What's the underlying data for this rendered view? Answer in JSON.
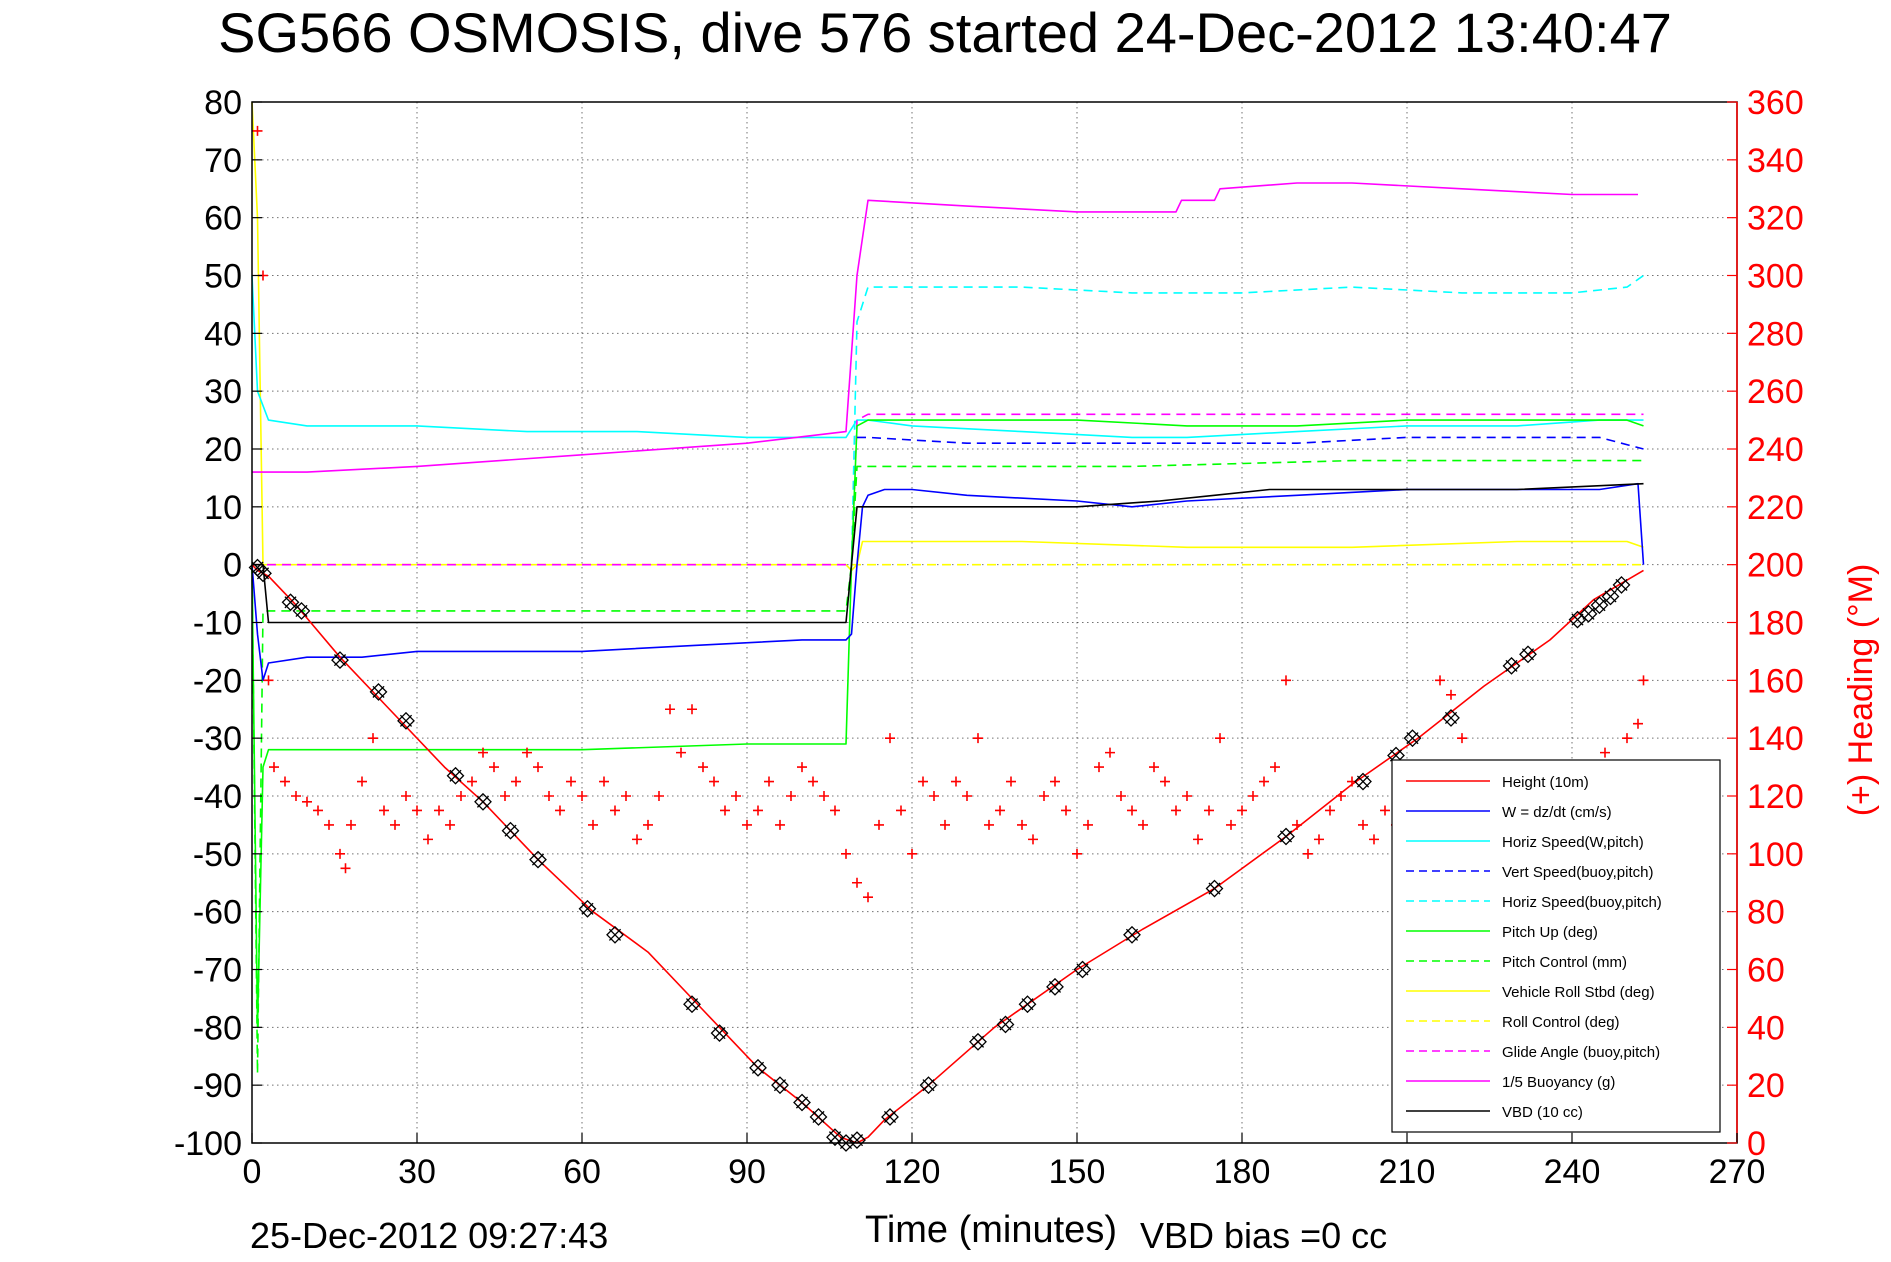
{
  "chart_data": {
    "type": "line",
    "title": "SG566 OSMOSIS, dive 576 started 24-Dec-2012 13:40:47",
    "xlabel": "Time (minutes)",
    "ylabel": "",
    "ylabel_right": "(+) Heading (°M)",
    "footer_left": "25-Dec-2012 09:27:43",
    "footer_right": "VBD bias =0 cc",
    "xlim": [
      0,
      270
    ],
    "ylim": [
      -100,
      80
    ],
    "ylim_right": [
      0,
      360
    ],
    "x_ticks": [
      0,
      30,
      60,
      90,
      120,
      150,
      180,
      210,
      240,
      270
    ],
    "y_ticks": [
      80,
      70,
      60,
      50,
      40,
      30,
      20,
      10,
      0,
      -10,
      -20,
      -30,
      -40,
      -50,
      -60,
      -70,
      -80,
      -90,
      -100
    ],
    "y_ticks_right": [
      360,
      340,
      320,
      300,
      280,
      260,
      240,
      220,
      200,
      180,
      160,
      140,
      120,
      100,
      80,
      60,
      40,
      20,
      0
    ],
    "grid": true,
    "legend_position": "bottom-right",
    "colors": {
      "red": "#ff0000",
      "blue": "#0000ff",
      "cyan": "#00ffff",
      "green": "#00ff00",
      "yellow": "#ffff00",
      "magenta": "#ff00ff",
      "black": "#000000"
    },
    "series": [
      {
        "name": "Height (10m)",
        "color": "#ff0000",
        "style": "solid",
        "x": [
          0,
          1,
          3,
          8,
          16,
          24,
          35,
          42,
          52,
          62,
          72,
          82,
          92,
          100,
          107,
          110,
          112,
          115,
          123,
          135,
          150,
          162,
          175,
          188,
          200,
          212,
          224,
          236,
          244,
          253
        ],
        "y": [
          0,
          -1,
          -2,
          -7,
          -16,
          -24,
          -35,
          -41,
          -51,
          -60,
          -67,
          -77,
          -87,
          -93,
          -99,
          -100,
          -99,
          -96,
          -90,
          -80,
          -70,
          -63,
          -56,
          -47,
          -38,
          -30,
          -21,
          -13,
          -6,
          -1
        ]
      },
      {
        "name": "W = dz/dt (cm/s)",
        "color": "#0000ff",
        "style": "solid",
        "x": [
          0,
          1,
          2,
          3,
          10,
          20,
          30,
          40,
          60,
          80,
          100,
          108,
          109,
          110,
          111,
          112,
          115,
          120,
          130,
          150,
          160,
          170,
          190,
          210,
          230,
          245,
          252,
          253
        ],
        "y": [
          0,
          -12,
          -20,
          -17,
          -16,
          -16,
          -15,
          -15,
          -15,
          -14,
          -13,
          -13,
          -12,
          0,
          10,
          12,
          13,
          13,
          12,
          11,
          10,
          11,
          12,
          13,
          13,
          13,
          14,
          0
        ]
      },
      {
        "name": "Horiz Speed(W,pitch)",
        "color": "#00ffff",
        "style": "solid",
        "x": [
          0,
          1,
          3,
          10,
          20,
          30,
          50,
          70,
          90,
          108,
          110,
          112,
          120,
          140,
          160,
          170,
          190,
          210,
          230,
          245,
          253
        ],
        "y": [
          50,
          30,
          25,
          24,
          24,
          24,
          23,
          23,
          22,
          22,
          25,
          25,
          24,
          23,
          22,
          22,
          23,
          24,
          24,
          25,
          25
        ]
      },
      {
        "name": "Vert Speed(buoy,pitch)",
        "color": "#0000ff",
        "style": "dashed",
        "x": [
          110,
          112,
          130,
          150,
          170,
          190,
          210,
          230,
          245,
          253
        ],
        "y": [
          22,
          22,
          21,
          21,
          21,
          21,
          22,
          22,
          22,
          20
        ]
      },
      {
        "name": "Horiz Speed(buoy,pitch)",
        "color": "#00ffff",
        "style": "dashed",
        "x": [
          109,
          110,
          112,
          120,
          140,
          160,
          180,
          200,
          220,
          240,
          250,
          253
        ],
        "y": [
          0,
          42,
          48,
          48,
          48,
          47,
          47,
          48,
          47,
          47,
          48,
          50
        ]
      },
      {
        "name": "Pitch Up (deg)",
        "color": "#00ff00",
        "style": "solid",
        "x": [
          0,
          1,
          2,
          3,
          10,
          30,
          60,
          90,
          108,
          109,
          110,
          112,
          130,
          150,
          170,
          190,
          210,
          230,
          250,
          253
        ],
        "y": [
          0,
          -80,
          -35,
          -32,
          -32,
          -32,
          -32,
          -31,
          -31,
          0,
          24,
          25,
          25,
          25,
          24,
          24,
          25,
          25,
          25,
          24
        ]
      },
      {
        "name": "Pitch Control (mm)",
        "color": "#00ff00",
        "style": "dashed",
        "x": [
          0,
          1,
          2,
          3,
          10,
          50,
          100,
          108,
          109,
          110,
          112,
          130,
          160,
          200,
          230,
          253
        ],
        "y": [
          0,
          -88,
          -8,
          -8,
          -8,
          -8,
          -8,
          -8,
          0,
          17,
          17,
          17,
          17,
          18,
          18,
          18
        ]
      },
      {
        "name": "Vehicle Roll Stbd (deg)",
        "color": "#ffff00",
        "style": "solid",
        "x": [
          0,
          1,
          2,
          3,
          20,
          50,
          80,
          108,
          109,
          110,
          111,
          140,
          170,
          200,
          230,
          250,
          253
        ],
        "y": [
          80,
          60,
          0,
          0,
          0,
          0,
          0,
          0,
          -1,
          0,
          4,
          4,
          3,
          3,
          4,
          4,
          3
        ]
      },
      {
        "name": "Roll Control (deg)",
        "color": "#ffff00",
        "style": "dashed",
        "x": [
          0,
          3,
          50,
          108,
          110,
          253
        ],
        "y": [
          0,
          0,
          0,
          0,
          0,
          0
        ]
      },
      {
        "name": "Glide Angle (buoy,pitch)",
        "color": "#ff00ff",
        "style": "dashed",
        "x": [
          0,
          50,
          108,
          109,
          110,
          112,
          140,
          170,
          200,
          230,
          253
        ],
        "y": [
          0,
          0,
          0,
          0,
          25,
          26,
          26,
          26,
          26,
          26,
          26
        ]
      },
      {
        "name": "1/5 Buoyancy (g)",
        "color": "#ff00ff",
        "style": "solid",
        "x": [
          0,
          2,
          10,
          30,
          60,
          90,
          108,
          110,
          112,
          130,
          150,
          160,
          168,
          169,
          175,
          176,
          190,
          200,
          220,
          240,
          252
        ],
        "y": [
          16,
          16,
          16,
          17,
          19,
          21,
          23,
          50,
          63,
          62,
          61,
          61,
          61,
          63,
          63,
          65,
          66,
          66,
          65,
          64,
          64
        ]
      },
      {
        "name": "VBD (10 cc)",
        "color": "#000000",
        "style": "solid",
        "x": [
          0,
          2,
          3,
          50,
          108,
          109,
          110,
          111,
          150,
          165,
          175,
          185,
          200,
          230,
          253
        ],
        "y": [
          0,
          0,
          -10,
          -10,
          -10,
          0,
          10,
          10,
          10,
          11,
          12,
          13,
          13,
          13,
          14
        ]
      }
    ],
    "heading_points": {
      "name": "Heading",
      "axis": "right",
      "color": "#ff0000",
      "marker": "+",
      "x": [
        1,
        2,
        3,
        4,
        6,
        8,
        10,
        12,
        14,
        16,
        17,
        18,
        20,
        22,
        24,
        26,
        28,
        30,
        32,
        34,
        36,
        38,
        40,
        42,
        44,
        46,
        48,
        50,
        52,
        54,
        56,
        58,
        60,
        62,
        64,
        66,
        68,
        70,
        72,
        74,
        76,
        78,
        80,
        82,
        84,
        86,
        88,
        90,
        92,
        94,
        96,
        98,
        100,
        102,
        104,
        106,
        108,
        110,
        112,
        114,
        116,
        118,
        120,
        122,
        124,
        126,
        128,
        130,
        132,
        134,
        136,
        138,
        140,
        142,
        144,
        146,
        148,
        150,
        152,
        154,
        156,
        158,
        160,
        162,
        164,
        166,
        168,
        170,
        172,
        174,
        176,
        178,
        180,
        182,
        184,
        186,
        188,
        190,
        192,
        194,
        196,
        198,
        200,
        202,
        204,
        206,
        208,
        210,
        212,
        214,
        216,
        218,
        220,
        222,
        224,
        226,
        228,
        230,
        232,
        234,
        236,
        238,
        240,
        242,
        244,
        246,
        248,
        250,
        252,
        253
      ],
      "y": [
        350,
        300,
        160,
        130,
        125,
        120,
        118,
        115,
        110,
        100,
        95,
        110,
        125,
        140,
        115,
        110,
        120,
        115,
        105,
        115,
        110,
        120,
        125,
        135,
        130,
        120,
        125,
        135,
        130,
        120,
        115,
        125,
        120,
        110,
        125,
        115,
        120,
        105,
        110,
        120,
        150,
        135,
        150,
        130,
        125,
        115,
        120,
        110,
        115,
        125,
        110,
        120,
        130,
        125,
        120,
        115,
        100,
        90,
        85,
        110,
        140,
        115,
        100,
        125,
        120,
        110,
        125,
        120,
        140,
        110,
        115,
        125,
        110,
        105,
        120,
        125,
        115,
        100,
        110,
        130,
        135,
        120,
        115,
        110,
        130,
        125,
        115,
        120,
        105,
        115,
        140,
        110,
        115,
        120,
        125,
        130,
        160,
        110,
        100,
        105,
        115,
        120,
        125,
        110,
        105,
        115,
        110,
        120,
        115,
        100,
        160,
        155,
        140,
        130,
        125,
        120,
        110,
        115,
        120,
        125,
        130,
        120,
        115,
        125,
        120,
        135,
        130,
        140,
        145,
        160
      ]
    },
    "height_markers": {
      "name": "Height markers",
      "color": "#000000",
      "marker": "diamond-x",
      "x": [
        1,
        2,
        7,
        9,
        16,
        23,
        28,
        37,
        42,
        47,
        52,
        61,
        66,
        80,
        85,
        92,
        96,
        100,
        103,
        106,
        108,
        110,
        116,
        123,
        132,
        137,
        141,
        146,
        151,
        160,
        175,
        188,
        202,
        208,
        211,
        218,
        229,
        232,
        241,
        243,
        245,
        247,
        249
      ],
      "y": [
        -0.5,
        -1.5,
        -6.5,
        -8,
        -16.5,
        -22,
        -27,
        -36.5,
        -41,
        -46,
        -51,
        -59.5,
        -64,
        -76,
        -81,
        -87,
        -90,
        -93,
        -95.5,
        -99,
        -100,
        -99.5,
        -95.5,
        -90,
        -82.5,
        -79.5,
        -76,
        -73,
        -70,
        -64,
        -56,
        -47,
        -37.5,
        -33,
        -30,
        -26.5,
        -17.5,
        -15.5,
        -9.5,
        -8.5,
        -7,
        -5.5,
        -3.5
      ]
    },
    "legend": [
      {
        "label": "Height (10m)",
        "color": "#ff0000",
        "style": "solid"
      },
      {
        "label": "W = dz/dt (cm/s)",
        "color": "#0000ff",
        "style": "solid"
      },
      {
        "label": "Horiz Speed(W,pitch)",
        "color": "#00ffff",
        "style": "solid"
      },
      {
        "label": "Vert Speed(buoy,pitch)",
        "color": "#0000ff",
        "style": "dashed"
      },
      {
        "label": "Horiz Speed(buoy,pitch)",
        "color": "#00ffff",
        "style": "dashed"
      },
      {
        "label": "Pitch Up (deg)",
        "color": "#00ff00",
        "style": "solid"
      },
      {
        "label": "Pitch Control (mm)",
        "color": "#00ff00",
        "style": "dashed"
      },
      {
        "label": "Vehicle Roll Stbd (deg)",
        "color": "#ffff00",
        "style": "solid"
      },
      {
        "label": "Roll Control (deg)",
        "color": "#ffff00",
        "style": "dashed"
      },
      {
        "label": "Glide Angle (buoy,pitch)",
        "color": "#ff00ff",
        "style": "dashed"
      },
      {
        "label": "1/5 Buoyancy (g)",
        "color": "#ff00ff",
        "style": "solid"
      },
      {
        "label": "VBD (10 cc)",
        "color": "#000000",
        "style": "solid"
      }
    ]
  }
}
